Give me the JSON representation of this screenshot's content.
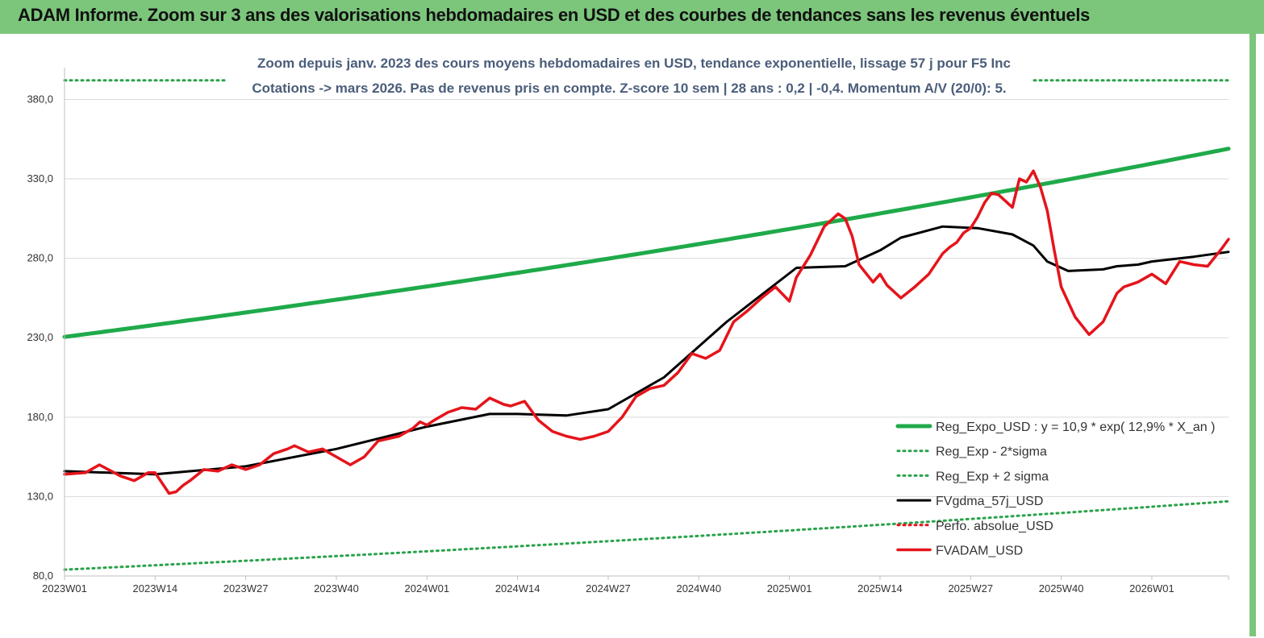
{
  "header": {
    "title": "ADAM Informe. Zoom sur 3 ans des valorisations hebdomadaires en USD et des courbes de tendances sans les revenus éventuels"
  },
  "chart_data": {
    "type": "line",
    "subtitle_line1": "Zoom depuis janv. 2023 des cours moyens hebdomadaires en USD, tendance exponentielle, lissage 57 j pour F5 Inc",
    "subtitle_line2": "Cotations -> mars 2026. Pas de revenus pris en compte. Z-score 10 sem | 28 ans : 0,2 | -0,4. Momentum A/V (20/0): 5.",
    "ylim": [
      80,
      400
    ],
    "yticks": [
      "80,0",
      "130,0",
      "180,0",
      "230,0",
      "280,0",
      "330,0",
      "380,0"
    ],
    "ytick_values": [
      80,
      130,
      180,
      230,
      280,
      330,
      380
    ],
    "xticks": [
      "2023W01",
      "2023W14",
      "2023W27",
      "2023W40",
      "2024W01",
      "2024W14",
      "2024W27",
      "2024W40",
      "2025W01",
      "2025W14",
      "2025W27",
      "2025W40",
      "2026W01"
    ],
    "x_count": 168,
    "grid": "horizontal",
    "legend_position": "right",
    "colors": {
      "green": "#1faa4a",
      "dotted_green": "#2aa24a",
      "black": "#000000",
      "red": "#e5141b"
    },
    "series": [
      {
        "name": "Reg_Expo_USD : y = 10,9 * exp( 12,9% * X_an )",
        "style": "solid",
        "color": "#1faa4a",
        "x": [
          0,
          167
        ],
        "values": [
          230.5,
          349
        ]
      },
      {
        "name": "Reg_Exp - 2*sigma",
        "style": "dotted",
        "color": "#2aa24a",
        "x": [
          0,
          167
        ],
        "values": [
          84,
          127
        ]
      },
      {
        "name": "Reg_Exp + 2 sigma",
        "style": "dotted",
        "color": "#2aa24a",
        "x": [
          0,
          167
        ],
        "values": [
          392,
          392
        ]
      },
      {
        "name": "FVgdma_57j_USD",
        "style": "solid",
        "color": "#000000",
        "x": [
          0,
          13,
          26,
          39,
          52,
          61,
          65,
          72,
          78,
          86,
          95,
          105,
          112,
          117,
          120,
          126,
          131,
          136,
          139,
          141,
          144,
          149,
          151,
          154,
          156,
          162,
          167
        ],
        "values": [
          146,
          144,
          149,
          160,
          174,
          182,
          182,
          181,
          185,
          205,
          240,
          274,
          275,
          285,
          293,
          300,
          299,
          295,
          288,
          278,
          272,
          273,
          275,
          276,
          278,
          281,
          284
        ]
      },
      {
        "name": "Perfo. absolue_USD",
        "style": "dotted",
        "color": "#e5141b",
        "x": [],
        "values": []
      },
      {
        "name": "FVADAM_USD",
        "style": "solid",
        "color": "#e5141b",
        "x": [
          0,
          3,
          5,
          8,
          10,
          12,
          13,
          15,
          16,
          17,
          18,
          20,
          22,
          24,
          26,
          28,
          30,
          32,
          33,
          35,
          37,
          39,
          41,
          43,
          45,
          48,
          50,
          51,
          52,
          53,
          55,
          57,
          59,
          61,
          63,
          64,
          66,
          68,
          70,
          72,
          74,
          76,
          78,
          80,
          82,
          84,
          86,
          88,
          90,
          92,
          94,
          96,
          98,
          100,
          102,
          104,
          105,
          107,
          109,
          111,
          112,
          113,
          114,
          116,
          117,
          118,
          120,
          122,
          124,
          126,
          127,
          128,
          129,
          130,
          131,
          132,
          133,
          134,
          135,
          136,
          137,
          138,
          139,
          140,
          141,
          142,
          143,
          145,
          147,
          149,
          151,
          152,
          154,
          156,
          158,
          160,
          162,
          164,
          166,
          167
        ],
        "values": [
          144,
          145,
          150,
          143,
          140,
          145,
          145,
          132,
          133,
          137,
          140,
          147,
          146,
          150,
          147,
          150,
          157,
          160,
          162,
          158,
          160,
          155,
          150,
          155,
          165,
          168,
          173,
          177,
          175,
          178,
          183,
          186,
          185,
          192,
          188,
          187,
          190,
          178,
          171,
          168,
          166,
          168,
          171,
          180,
          193,
          198,
          200,
          208,
          220,
          217,
          222,
          240,
          247,
          255,
          262,
          253,
          268,
          282,
          300,
          308,
          305,
          294,
          276,
          265,
          270,
          263,
          255,
          262,
          270,
          283,
          287,
          290,
          296,
          299,
          306,
          315,
          321,
          320,
          316,
          312,
          330,
          328,
          335,
          325,
          310,
          285,
          262,
          243,
          232,
          240,
          258,
          262,
          265,
          270,
          264,
          278,
          276,
          275,
          286,
          292
        ]
      }
    ]
  }
}
